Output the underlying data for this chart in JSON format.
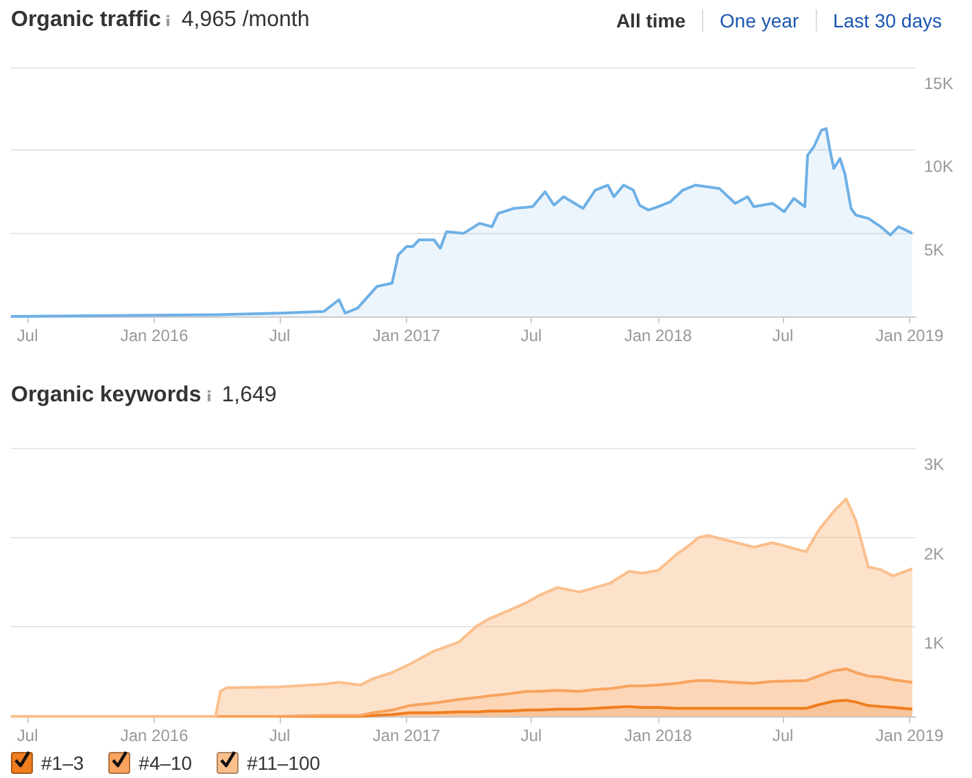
{
  "chart_data": [
    {
      "type": "area",
      "title": "Organic traffic",
      "subtitle": "4,965 /month",
      "annotations": [
        "All time",
        "One year",
        "Last 30 days"
      ],
      "x": [
        "2015-06-07",
        "2016-04-01",
        "2016-07-01",
        "2016-09-03",
        "2016-09-25",
        "2016-10-04",
        "2016-10-22",
        "2016-11-19",
        "2016-12-11",
        "2016-12-20",
        "2017-01-01",
        "2017-01-10",
        "2017-01-19",
        "2017-02-10",
        "2017-02-19",
        "2017-02-28",
        "2017-03-25",
        "2017-04-17",
        "2017-05-05",
        "2017-05-14",
        "2017-06-06",
        "2017-07-03",
        "2017-07-21",
        "2017-08-03",
        "2017-08-17",
        "2017-09-14",
        "2017-10-02",
        "2017-10-20",
        "2017-10-29",
        "2017-11-12",
        "2017-11-26",
        "2017-12-05",
        "2017-12-18",
        "2018-01-01",
        "2018-01-19",
        "2018-02-06",
        "2018-02-24",
        "2018-03-31",
        "2018-04-23",
        "2018-05-11",
        "2018-05-20",
        "2018-06-16",
        "2018-07-03",
        "2018-07-17",
        "2018-08-02",
        "2018-08-06",
        "2018-08-15",
        "2018-08-26",
        "2018-09-02",
        "2018-09-07",
        "2018-09-13",
        "2018-09-22",
        "2018-09-29",
        "2018-10-08",
        "2018-10-15",
        "2018-11-02",
        "2018-11-20",
        "2018-12-04",
        "2018-12-16",
        "2019-01-05"
      ],
      "series": [
        {
          "color": "#6eb0e6",
          "values": [
            0,
            100,
            200,
            300,
            1000,
            200,
            500,
            1800,
            2000,
            3700,
            4200,
            4200,
            4600,
            4600,
            4100,
            5100,
            5000,
            5600,
            5400,
            6200,
            6500,
            6600,
            7500,
            6700,
            7200,
            6500,
            7600,
            7900,
            7200,
            7900,
            7600,
            6700,
            6400,
            6600,
            6900,
            7600,
            7900,
            7700,
            6800,
            7200,
            6600,
            6800,
            6300,
            7100,
            6600,
            9700,
            10200,
            11200,
            11300,
            10100,
            8900,
            9500,
            8600,
            6500,
            6100,
            5900,
            5400,
            4900,
            5400,
            5000
          ]
        }
      ],
      "xlim": [
        "2015-06-07",
        "2019-01-10"
      ],
      "xticks": [
        {
          "value": "2015-07-01",
          "label": "Jul"
        },
        {
          "value": "2016-01-01",
          "label": "Jan 2016"
        },
        {
          "value": "2016-07-01",
          "label": "Jul"
        },
        {
          "value": "2017-01-01",
          "label": "Jan 2017"
        },
        {
          "value": "2017-07-01",
          "label": "Jul"
        },
        {
          "value": "2018-01-01",
          "label": "Jan 2018"
        },
        {
          "value": "2018-07-01",
          "label": "Jul"
        },
        {
          "value": "2019-01-01",
          "label": "Jan 2019"
        }
      ],
      "ylim": [
        0,
        15000
      ],
      "yticks": [
        {
          "value": 0,
          "label": null
        },
        {
          "value": 5000,
          "label": "5K"
        },
        {
          "value": 10000,
          "label": "10K"
        },
        {
          "value": 15000,
          "label": "15K"
        }
      ],
      "grid": "y",
      "marker": "none"
    },
    {
      "type": "area",
      "title": "Organic keywords",
      "subtitle": "1,649",
      "stacked": true,
      "x": [
        "2015-06-07",
        "2016-03-30",
        "2016-04-06",
        "2016-04-15",
        "2016-07-01",
        "2016-09-03",
        "2016-09-25",
        "2016-10-26",
        "2016-11-13",
        "2016-12-11",
        "2017-01-05",
        "2017-02-10",
        "2017-03-18",
        "2017-04-13",
        "2017-05-01",
        "2017-05-28",
        "2017-06-24",
        "2017-07-12",
        "2017-08-08",
        "2017-09-09",
        "2017-10-02",
        "2017-10-24",
        "2017-11-20",
        "2017-12-08",
        "2018-01-01",
        "2018-01-28",
        "2018-02-15",
        "2018-03-01",
        "2018-03-15",
        "2018-04-20",
        "2018-05-20",
        "2018-06-16",
        "2018-08-04",
        "2018-08-22",
        "2018-09-13",
        "2018-10-01",
        "2018-10-15",
        "2018-11-02",
        "2018-11-20",
        "2018-12-08",
        "2019-01-05"
      ],
      "series": [
        {
          "name": "#1–3",
          "color": "#f07d1e",
          "values": [
            0,
            0,
            0,
            0,
            0,
            0,
            0,
            0,
            10,
            20,
            40,
            40,
            50,
            50,
            60,
            60,
            70,
            70,
            80,
            80,
            90,
            100,
            110,
            100,
            100,
            90,
            90,
            90,
            90,
            90,
            90,
            90,
            90,
            130,
            170,
            180,
            160,
            120,
            110,
            100,
            80
          ]
        },
        {
          "name": "#4–10",
          "color": "#f8a35e",
          "values": [
            0,
            0,
            0,
            0,
            0,
            10,
            10,
            10,
            30,
            50,
            80,
            110,
            140,
            160,
            170,
            190,
            210,
            210,
            210,
            200,
            210,
            210,
            230,
            240,
            250,
            280,
            300,
            310,
            310,
            290,
            280,
            300,
            310,
            320,
            340,
            350,
            330,
            330,
            330,
            310,
            300
          ]
        },
        {
          "name": "#11–100",
          "color": "#fbbf8c",
          "values": [
            0,
            0,
            280,
            320,
            330,
            350,
            370,
            340,
            380,
            420,
            460,
            580,
            640,
            800,
            860,
            930,
            990,
            1070,
            1150,
            1110,
            1140,
            1180,
            1280,
            1260,
            1280,
            1440,
            1520,
            1600,
            1620,
            1570,
            1520,
            1550,
            1440,
            1630,
            1780,
            1900,
            1700,
            1220,
            1200,
            1160,
            1270
          ]
        }
      ],
      "xlim": [
        "2015-06-07",
        "2019-01-10"
      ],
      "xticks": [
        {
          "value": "2015-07-01",
          "label": "Jul"
        },
        {
          "value": "2016-01-01",
          "label": "Jan 2016"
        },
        {
          "value": "2016-07-01",
          "label": "Jul"
        },
        {
          "value": "2017-01-01",
          "label": "Jan 2017"
        },
        {
          "value": "2017-07-01",
          "label": "Jul"
        },
        {
          "value": "2018-01-01",
          "label": "Jan 2018"
        },
        {
          "value": "2018-07-01",
          "label": "Jul"
        },
        {
          "value": "2019-01-01",
          "label": "Jan 2019"
        }
      ],
      "ylim": [
        0,
        3000
      ],
      "yticks": [
        {
          "value": 0,
          "label": null
        },
        {
          "value": 1000,
          "label": "1K"
        },
        {
          "value": 2000,
          "label": "2K"
        },
        {
          "value": 3000,
          "label": "3K"
        }
      ],
      "grid": "y",
      "marker": "none",
      "legend": "bottom left"
    }
  ]
}
